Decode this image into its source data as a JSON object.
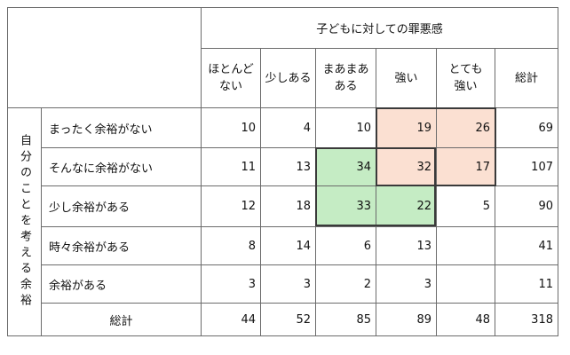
{
  "header": {
    "title": "子どもに対しての罪悪感",
    "columns": [
      "ほとんど\nない",
      "少しある",
      "まあまあ\nある",
      "強い",
      "とても\n強い",
      "総計"
    ]
  },
  "row_group_label": "自分のことを考える余裕",
  "rows": [
    {
      "label": "まったく余裕がない",
      "values": [
        "10",
        "4",
        "10",
        "19",
        "26",
        "69"
      ]
    },
    {
      "label": "そんなに余裕がない",
      "values": [
        "11",
        "13",
        "34",
        "32",
        "17",
        "107"
      ]
    },
    {
      "label": "少し余裕がある",
      "values": [
        "12",
        "18",
        "33",
        "22",
        "5",
        "90"
      ]
    },
    {
      "label": "時々余裕がある",
      "values": [
        "8",
        "14",
        "6",
        "13",
        "",
        "41"
      ]
    },
    {
      "label": "余裕がある",
      "values": [
        "3",
        "3",
        "2",
        "3",
        "",
        "11"
      ]
    }
  ],
  "total_row": {
    "label": "総計",
    "values": [
      "44",
      "52",
      "85",
      "89",
      "48",
      "318"
    ]
  },
  "highlight_colors": {
    "pink": "#fbe0d2",
    "green": "#c5ecc4"
  }
}
